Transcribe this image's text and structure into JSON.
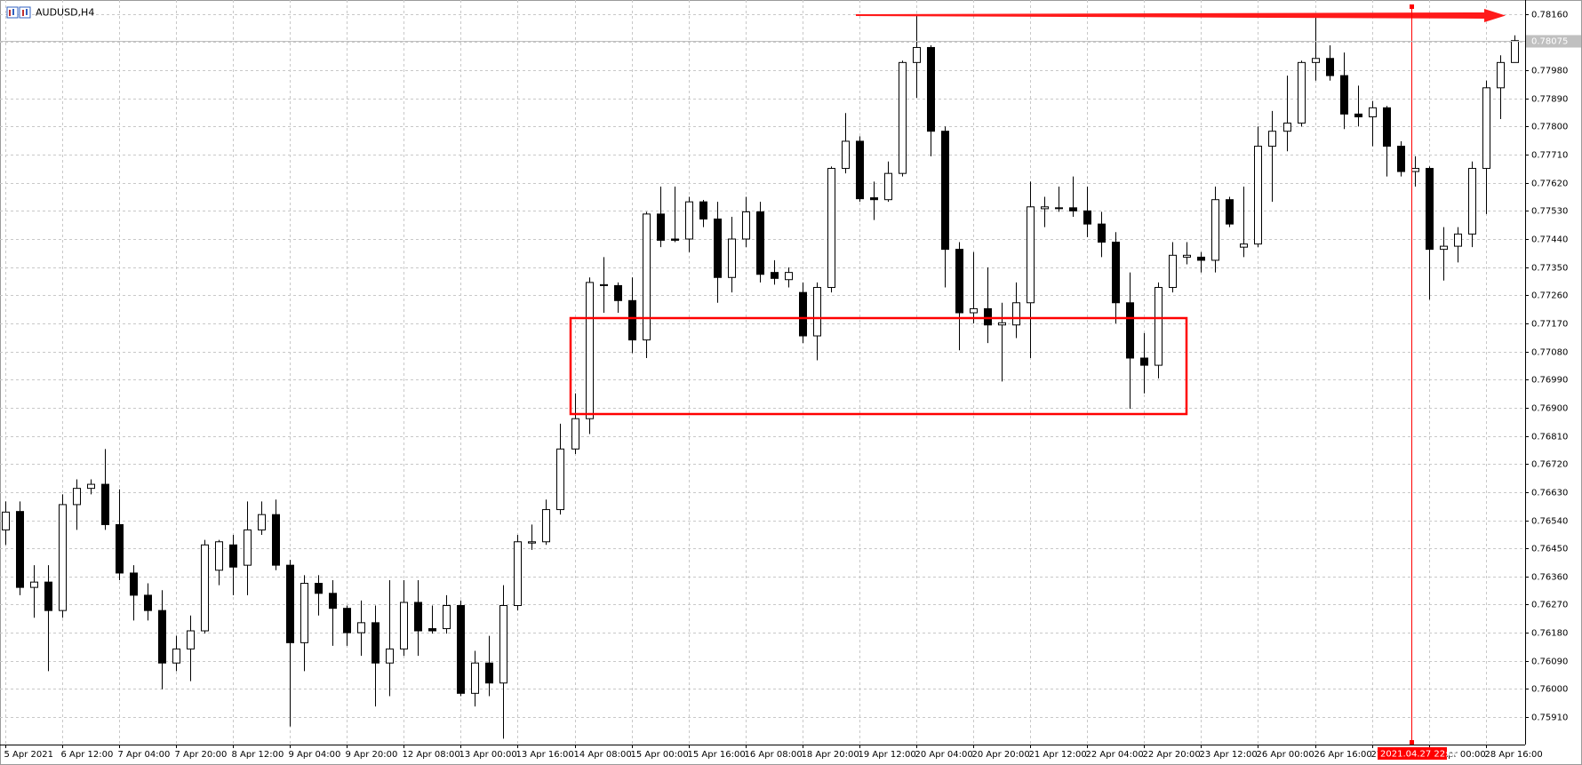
{
  "chart_data": {
    "type": "candlestick",
    "title": "AUDUSD,H4",
    "up_color": "#ffffff",
    "down_color": "#000000",
    "grid": true,
    "ylim": [
      0.75822,
      0.78205
    ],
    "yticks": [
      {
        "value": 0.7816,
        "label": "0.78160"
      },
      {
        "value": 0.7807,
        "label": "0.78070"
      },
      {
        "value": 0.7798,
        "label": "0.77980"
      },
      {
        "value": 0.7789,
        "label": "0.77890"
      },
      {
        "value": 0.778,
        "label": "0.77800"
      },
      {
        "value": 0.7771,
        "label": "0.77710"
      },
      {
        "value": 0.7762,
        "label": "0.77620"
      },
      {
        "value": 0.7753,
        "label": "0.77530"
      },
      {
        "value": 0.7744,
        "label": "0.77440"
      },
      {
        "value": 0.7735,
        "label": "0.77350"
      },
      {
        "value": 0.7726,
        "label": "0.77260"
      },
      {
        "value": 0.7717,
        "label": "0.77170"
      },
      {
        "value": 0.7708,
        "label": "0.77080"
      },
      {
        "value": 0.7699,
        "label": "0.76990"
      },
      {
        "value": 0.769,
        "label": "0.76900"
      },
      {
        "value": 0.7681,
        "label": "0.76810"
      },
      {
        "value": 0.7672,
        "label": "0.76720"
      },
      {
        "value": 0.7663,
        "label": "0.76630"
      },
      {
        "value": 0.7654,
        "label": "0.76540"
      },
      {
        "value": 0.7645,
        "label": "0.76450"
      },
      {
        "value": 0.7636,
        "label": "0.76360"
      },
      {
        "value": 0.7627,
        "label": "0.76270"
      },
      {
        "value": 0.7618,
        "label": "0.76180"
      },
      {
        "value": 0.7609,
        "label": "0.76090"
      },
      {
        "value": 0.76,
        "label": "0.76000"
      },
      {
        "value": 0.7591,
        "label": "0.75910"
      }
    ],
    "current_price": {
      "value": 0.78075,
      "label": "0.78075"
    },
    "crosshair_label": "2021.04.27 22:00",
    "categories": [
      "5 Apr 2021",
      null,
      null,
      null,
      "6 Apr 12:00",
      null,
      null,
      null,
      "7 Apr 04:00",
      null,
      null,
      null,
      "7 Apr 20:00",
      null,
      null,
      null,
      "8 Apr 12:00",
      null,
      null,
      null,
      "9 Apr 04:00",
      null,
      null,
      null,
      "9 Apr 20:00",
      null,
      null,
      null,
      "12 Apr 08:00",
      null,
      null,
      null,
      "13 Apr 00:00",
      null,
      null,
      null,
      "13 Apr 16:00",
      null,
      null,
      null,
      "14 Apr 08:00",
      null,
      null,
      null,
      "15 Apr 00:00",
      null,
      null,
      null,
      "15 Apr 16:00",
      null,
      null,
      null,
      "16 Apr 08:00",
      null,
      null,
      null,
      "18 Apr 20:00",
      null,
      null,
      null,
      "19 Apr 12:00",
      null,
      null,
      null,
      "20 Apr 04:00",
      null,
      null,
      null,
      "20 Apr 20:00",
      null,
      null,
      null,
      "21 Apr 12:00",
      null,
      null,
      null,
      "22 Apr 04:00",
      null,
      null,
      null,
      "22 Apr 20:00",
      null,
      null,
      null,
      "23 Apr 12:00",
      null,
      null,
      null,
      "26 Apr 00:00",
      null,
      null,
      null,
      "26 Apr 16:00",
      null,
      null,
      null,
      "27 Apr 08:00",
      null,
      null,
      null,
      "28 Apr 00:00",
      null,
      null,
      null,
      "28 Apr 16:00",
      null,
      null
    ],
    "open": [
      0.76509,
      0.76568,
      0.76325,
      0.76342,
      0.76251,
      0.7659,
      0.76642,
      0.76655,
      0.76526,
      0.76371,
      0.763,
      0.76251,
      0.76083,
      0.76128,
      0.76186,
      0.7638,
      0.76461,
      0.76396,
      0.76509,
      0.76558,
      0.76396,
      0.76148,
      0.76338,
      0.76306,
      0.76258,
      0.7618,
      0.76212,
      0.76083,
      0.76128,
      0.76277,
      0.76193,
      0.76193,
      0.76267,
      0.75986,
      0.76083,
      0.76019,
      0.76267,
      0.76467,
      0.76471,
      0.76574,
      0.76768,
      0.76865,
      0.77291,
      0.77291,
      0.77243,
      0.77117,
      0.7752,
      0.7744,
      0.7744,
      0.77559,
      0.77504,
      0.77317,
      0.7744,
      0.77527,
      0.77333,
      0.7731,
      0.77269,
      0.7713,
      0.77285,
      0.77666,
      0.77753,
      0.77572,
      0.77566,
      0.7765,
      0.78005,
      0.78053,
      0.77785,
      0.77407,
      0.77204,
      0.77217,
      0.77165,
      0.77165,
      0.77236,
      0.77537,
      0.7754,
      0.7754,
      0.7753,
      0.77488,
      0.7743,
      0.77236,
      0.77059,
      0.77036,
      0.77285,
      0.77382,
      0.77382,
      0.77372,
      0.77566,
      0.77414,
      0.77424,
      0.77737,
      0.77785,
      0.77811,
      0.78005,
      0.78018,
      0.77963,
      0.7784,
      0.77831,
      0.7786,
      0.77737,
      0.77656,
      0.77666,
      0.77407,
      0.77417,
      0.77456,
      0.77666,
      0.77924,
      0.78005
    ],
    "high": [
      0.766,
      0.766,
      0.76396,
      0.76396,
      0.76623,
      0.76671,
      0.76671,
      0.76768,
      0.76639,
      0.76396,
      0.76338,
      0.76316,
      0.7617,
      0.76235,
      0.76477,
      0.76477,
      0.76493,
      0.766,
      0.766,
      0.76606,
      0.76413,
      0.76364,
      0.76364,
      0.76348,
      0.76267,
      0.76283,
      0.76267,
      0.76348,
      0.76348,
      0.76348,
      0.76267,
      0.763,
      0.76283,
      0.76122,
      0.7617,
      0.76332,
      0.76493,
      0.76526,
      0.76606,
      0.76849,
      0.76946,
      0.77317,
      0.77382,
      0.77301,
      0.77317,
      0.77527,
      0.77608,
      0.77608,
      0.77575,
      0.77565,
      0.77559,
      0.77511,
      0.77575,
      0.77559,
      0.77372,
      0.77349,
      0.77301,
      0.77301,
      0.77672,
      0.77843,
      0.77769,
      0.77624,
      0.77688,
      0.78011,
      0.7816,
      0.7806,
      0.778,
      0.7743,
      0.77398,
      0.77349,
      0.77236,
      0.77301,
      0.77624,
      0.77575,
      0.77608,
      0.7764,
      0.77608,
      0.77527,
      0.77462,
      0.77333,
      0.77139,
      0.77301,
      0.7743,
      0.7743,
      0.77398,
      0.77608,
      0.77575,
      0.77608,
      0.778,
      0.7785,
      0.77963,
      0.78011,
      0.7816,
      0.7806,
      0.78037,
      0.77931,
      0.77882,
      0.77866,
      0.77753,
      0.77705,
      0.77672,
      0.77478,
      0.77478,
      0.77688,
      0.77947,
      0.78028,
      0.78092
    ],
    "low": [
      0.76461,
      0.763,
      0.76228,
      0.76057,
      0.76228,
      0.76509,
      0.76623,
      0.76509,
      0.76348,
      0.76219,
      0.76219,
      0.75999,
      0.76057,
      0.76025,
      0.76177,
      0.76332,
      0.763,
      0.763,
      0.76493,
      0.7638,
      0.7588,
      0.76057,
      0.76235,
      0.76138,
      0.76138,
      0.76106,
      0.75944,
      0.75977,
      0.76106,
      0.76106,
      0.76177,
      0.76177,
      0.75977,
      0.75944,
      0.75977,
      0.75841,
      0.76251,
      0.76445,
      0.76461,
      0.76558,
      0.76752,
      0.76816,
      0.77204,
      0.77204,
      0.77075,
      0.77059,
      0.77414,
      0.7743,
      0.77398,
      0.77478,
      0.77236,
      0.77269,
      0.77414,
      0.77301,
      0.77294,
      0.77285,
      0.77107,
      0.77052,
      0.77269,
      0.7765,
      0.77559,
      0.77501,
      0.77559,
      0.7764,
      0.77892,
      0.77705,
      0.77285,
      0.77084,
      0.7717,
      0.77107,
      0.76984,
      0.77123,
      0.77059,
      0.77478,
      0.77527,
      0.77511,
      0.77446,
      0.77382,
      0.7717,
      0.76897,
      0.76946,
      0.76994,
      0.77269,
      0.77359,
      0.77333,
      0.77333,
      0.77478,
      0.77382,
      0.77414,
      0.77559,
      0.77721,
      0.778,
      0.77947,
      0.77947,
      0.77792,
      0.778,
      0.77737,
      0.7764,
      0.7764,
      0.77608,
      0.77246,
      0.77307,
      0.77365,
      0.77414,
      0.7752,
      0.77824,
      0.78005
    ],
    "close": [
      0.76566,
      0.76325,
      0.76342,
      0.76251,
      0.7659,
      0.76642,
      0.76655,
      0.76526,
      0.76371,
      0.763,
      0.76251,
      0.76083,
      0.76128,
      0.76186,
      0.76461,
      0.76471,
      0.7639,
      0.76509,
      0.76558,
      0.76396,
      0.76148,
      0.76338,
      0.76306,
      0.76258,
      0.7618,
      0.76212,
      0.76083,
      0.76128,
      0.76277,
      0.76186,
      0.76186,
      0.76267,
      0.75986,
      0.76083,
      0.76019,
      0.76267,
      0.76471,
      0.76471,
      0.76574,
      0.76768,
      0.76865,
      0.77301,
      0.77294,
      0.77243,
      0.77117,
      0.7752,
      0.77436,
      0.77436,
      0.77559,
      0.77504,
      0.77317,
      0.7744,
      0.77527,
      0.77327,
      0.77314,
      0.77333,
      0.7713,
      0.77285,
      0.77666,
      0.77753,
      0.77569,
      0.77566,
      0.7765,
      0.78005,
      0.78053,
      0.77785,
      0.77407,
      0.77204,
      0.77217,
      0.77165,
      0.77172,
      0.77236,
      0.77543,
      0.77543,
      0.7754,
      0.7753,
      0.77488,
      0.7743,
      0.77236,
      0.77059,
      0.77036,
      0.77285,
      0.77388,
      0.77388,
      0.77372,
      0.77566,
      0.77488,
      0.77424,
      0.77737,
      0.77785,
      0.77811,
      0.78005,
      0.78018,
      0.77963,
      0.7784,
      0.77831,
      0.7786,
      0.77737,
      0.77656,
      0.77666,
      0.77407,
      0.77417,
      0.77456,
      0.77666,
      0.77924,
      0.78005,
      0.78075
    ]
  }
}
